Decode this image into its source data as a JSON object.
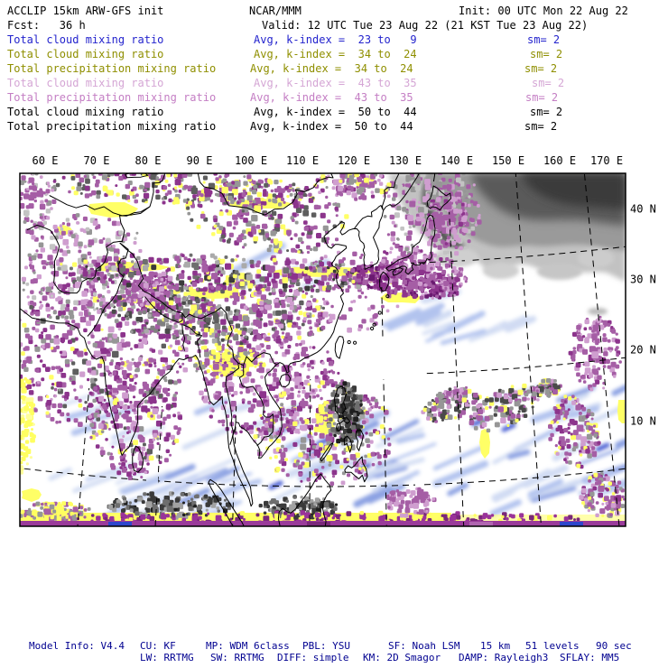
{
  "header": {
    "rows": [
      {
        "left": "ACCLIP 15km ARW-GFS init",
        "mid": "NCAR/MMM",
        "right": "Init: 00 UTC Mon 22 Aug 22",
        "color": "black"
      },
      {
        "left": "Fcst:   36 h",
        "mid": "Valid: 12 UTC Tue 23 Aug 22 (21 KST Tue 23 Aug 22)",
        "right": "",
        "color": "black"
      },
      {
        "left": "Total cloud mixing ratio",
        "mid": "Avg, k-index =  23 to   9",
        "right": "sm= 2",
        "color": "blue"
      },
      {
        "left": "Total cloud mixing ratio",
        "mid": "Avg, k-index =  34 to  24",
        "right": "sm= 2",
        "color": "olive"
      },
      {
        "left": "Total precipitation mixing ratio",
        "mid": "Avg, k-index =  34 to  24",
        "right": "sm= 2",
        "color": "olive"
      },
      {
        "left": "Total cloud mixing ratio",
        "mid": "Avg, k-index =  43 to  35",
        "right": "sm= 2",
        "color": "plum"
      },
      {
        "left": "Total precipitation mixing ratio",
        "mid": "Avg, k-index =  43 to  35",
        "right": "sm= 2",
        "color": "orchid"
      },
      {
        "left": "Total cloud mixing ratio",
        "mid": "Avg, k-index =  50 to  44",
        "right": "sm= 2",
        "color": "black"
      },
      {
        "left": "Total precipitation mixing ratio",
        "mid": "Avg, k-index =  50 to  44",
        "right": "sm= 2",
        "color": "black"
      }
    ]
  },
  "map": {
    "x_axis_labels": [
      "60 E",
      "70 E",
      "80 E",
      "90 E",
      "100 E",
      "110 E",
      "120 E",
      "130 E",
      "140 E",
      "150 E",
      "160 E",
      "170 E"
    ],
    "y_axis_labels": [
      "40 N",
      "30 N",
      "20 N",
      "10 N"
    ]
  },
  "footer": {
    "line1": [
      "Model Info: V4.4",
      "CU: KF",
      "MP: WDM 6class",
      "PBL: YSU",
      "SF: Noah LSM",
      "15 km",
      "51 levels",
      "90 sec"
    ],
    "line2": [
      "LW: RRTMG",
      "SW: RRTMG",
      "DIFF: simple",
      "KM: 2D Smagor",
      "DAMP: Rayleigh3",
      "SFLAY: MM5"
    ]
  },
  "colors": {
    "text_blue": "#2323cd",
    "text_olive": "#8f8f00",
    "text_plum": "#d5a6d5",
    "text_orchid": "#c47ec4",
    "text_footer_navy": "#000090",
    "field_purple_mid": "#a55ea5",
    "field_purple_dark": "#8c348c",
    "field_purple_deep": "#6a1a70",
    "field_purple_light": "#cf9ecf",
    "field_yellow": "#ffff66",
    "field_gray_light": "#c3c3c3",
    "field_gray_dark": "#3a3a3a",
    "field_blue_light": "#ccd8f2",
    "field_blue_strong": "#2e46cc",
    "coastline": "#000000"
  }
}
